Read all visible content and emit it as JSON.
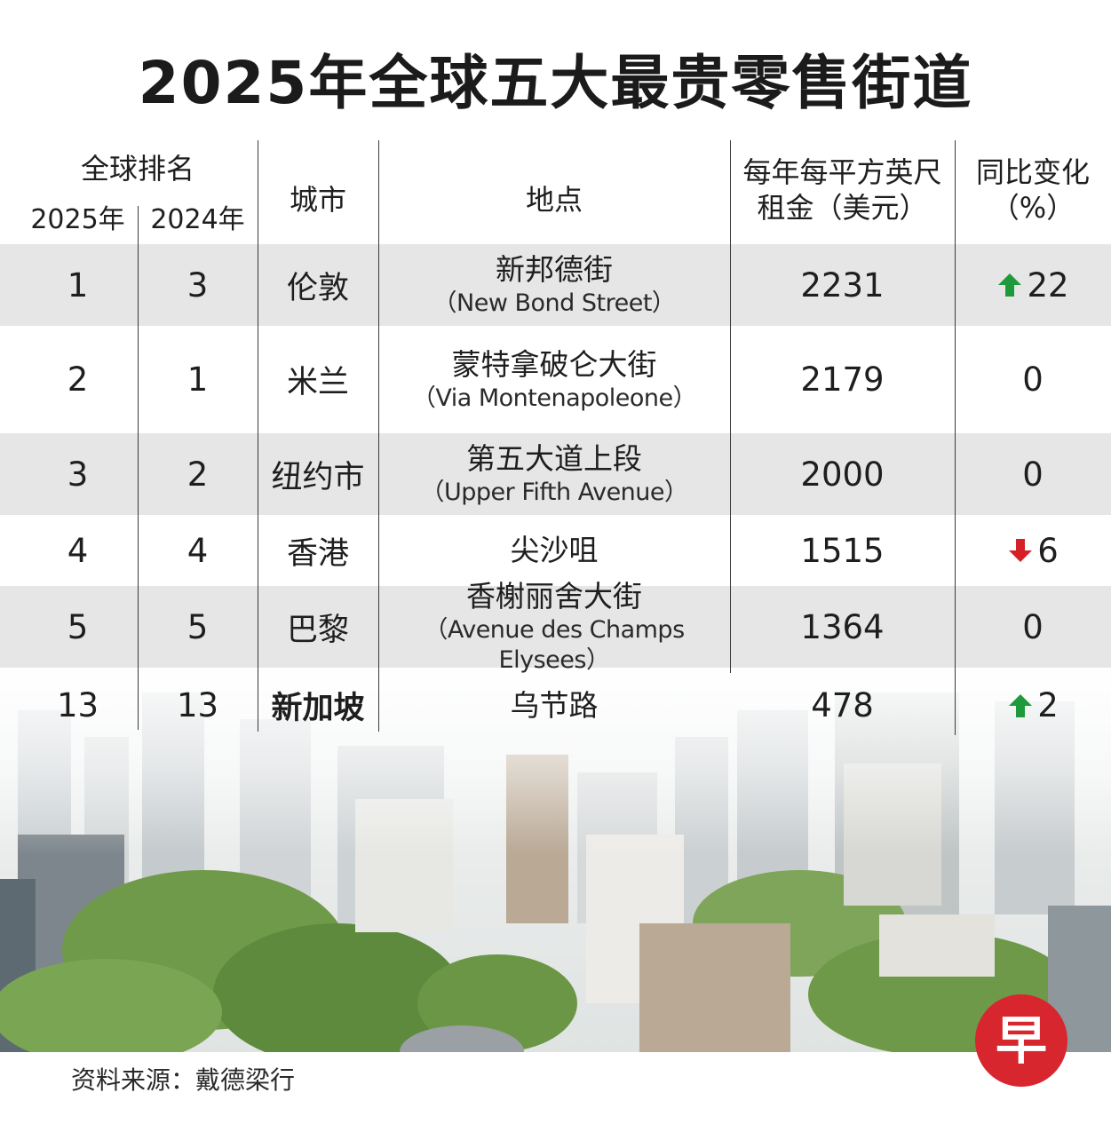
{
  "title": "2025年全球五大最贵零售街道",
  "header": {
    "rank_group": "全球排名",
    "rank_2025": "2025年",
    "rank_2024": "2024年",
    "city": "城市",
    "location": "地点",
    "rent_line1": "每年每平方英尺",
    "rent_line2": "租金（美元）",
    "change_line1": "同比变化",
    "change_line2": "（%）"
  },
  "chart_data": {
    "type": "table",
    "columns": [
      "2025年",
      "2024年",
      "城市",
      "地点",
      "每年每平方英尺租金（美元）",
      "同比变化（%）"
    ],
    "rows": [
      {
        "rank_2025": "1",
        "rank_2024": "3",
        "city": "伦敦",
        "location_zh": "新邦德街",
        "location_en": "（New Bond Street）",
        "rent": "2231",
        "change": "22",
        "trend": "up"
      },
      {
        "rank_2025": "2",
        "rank_2024": "1",
        "city": "米兰",
        "location_zh": "蒙特拿破仑大街",
        "location_en": "（Via Montenapoleone）",
        "rent": "2179",
        "change": "0",
        "trend": "none"
      },
      {
        "rank_2025": "3",
        "rank_2024": "2",
        "city": "纽约市",
        "location_zh": "第五大道上段",
        "location_en": "（Upper Fifth Avenue）",
        "rent": "2000",
        "change": "0",
        "trend": "none"
      },
      {
        "rank_2025": "4",
        "rank_2024": "4",
        "city": "香港",
        "location_zh": "尖沙咀",
        "location_en": "",
        "rent": "1515",
        "change": "6",
        "trend": "down"
      },
      {
        "rank_2025": "5",
        "rank_2024": "5",
        "city": "巴黎",
        "location_zh": "香榭丽舍大街",
        "location_en": "（Avenue des Champs Elysees）",
        "rent": "1364",
        "change": "0",
        "trend": "none"
      },
      {
        "rank_2025": "13",
        "rank_2024": "13",
        "city": "新加坡",
        "location_zh": "乌节路",
        "location_en": "",
        "rent": "478",
        "change": "2",
        "trend": "up",
        "highlight": true
      }
    ]
  },
  "colors": {
    "up_arrow": "#1f9a3a",
    "down_arrow": "#d62027",
    "band": "#e6e6e6",
    "logo": "#d8262f"
  },
  "source": "资料来源：戴德梁行",
  "logo_glyph": "早"
}
